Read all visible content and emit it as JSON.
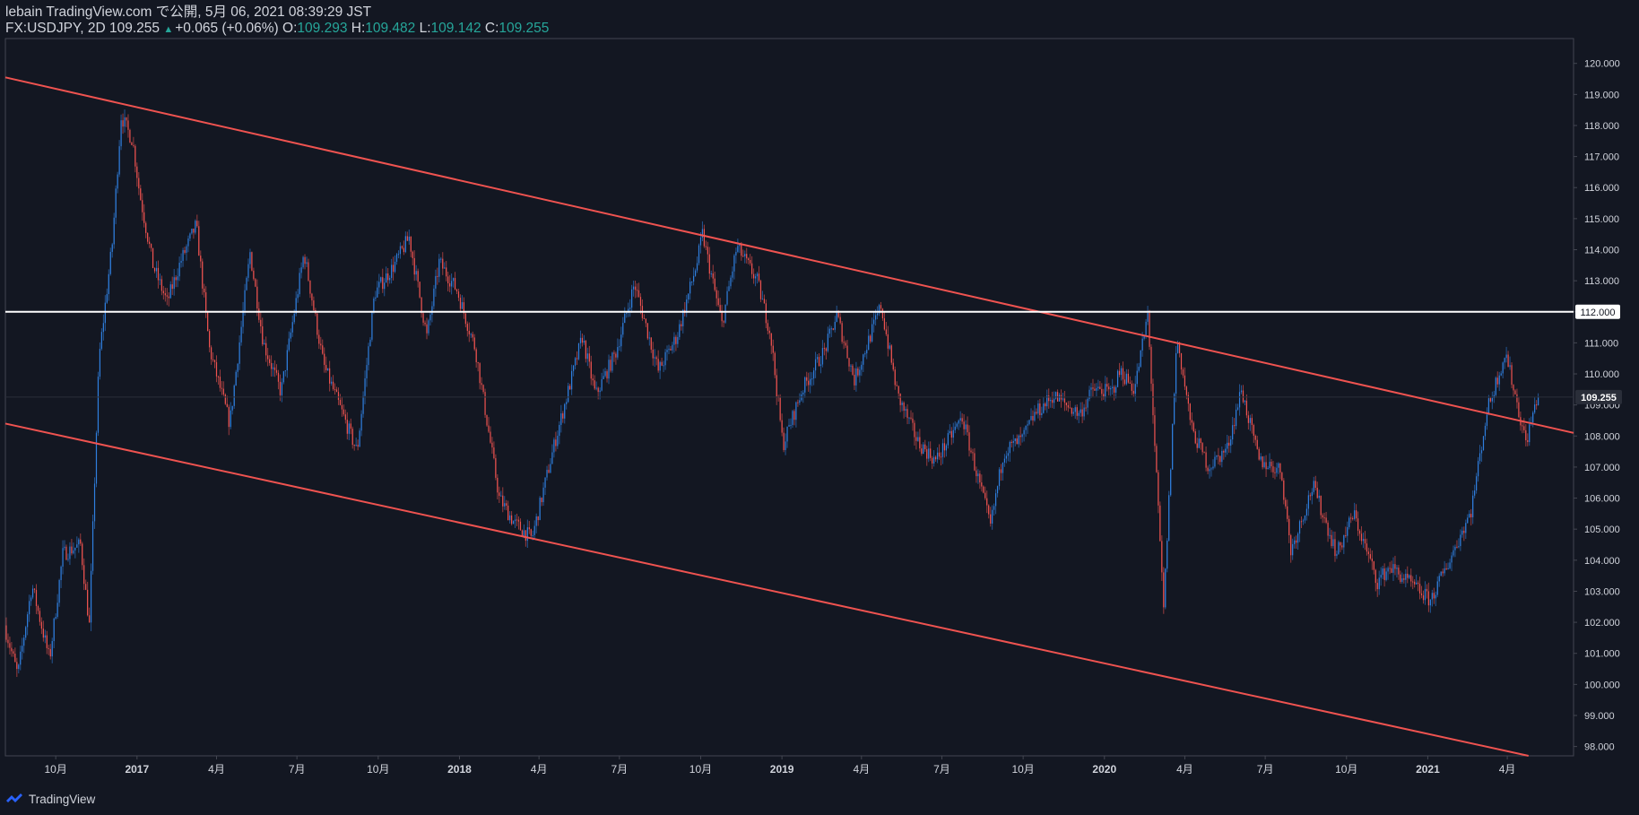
{
  "header": {
    "publish_line": "lebain TradingView.com で公開, 5月 06, 2021 08:39:29 JST",
    "symbol": "FX:USDJPY, 2D",
    "last": "109.255",
    "change": "+0.065 (+0.06%)",
    "o_label": "O:",
    "o_value": "109.293",
    "h_label": "H:",
    "h_value": "109.482",
    "l_label": "L:",
    "l_value": "109.142",
    "c_label": "C:",
    "c_value": "109.255"
  },
  "footer": {
    "brand": "TradingView"
  },
  "colors": {
    "background": "#131722",
    "up": "#2f7fdf",
    "down": "#ef5350",
    "channel": "#ef5350",
    "level": "#ffffff",
    "axis_text": "#d1d4dc"
  },
  "chart_data": {
    "type": "candlestick",
    "symbol": "FX:USDJPY",
    "interval": "2D",
    "ylim": [
      97.7,
      120.8
    ],
    "xlim": [
      "2016-08-05",
      "2021-06-15"
    ],
    "price_ticks": [
      "98.000",
      "99.000",
      "100.000",
      "101.000",
      "102.000",
      "103.000",
      "104.000",
      "105.000",
      "106.000",
      "107.000",
      "108.000",
      "109.000",
      "110.000",
      "111.000",
      "112.000",
      "113.000",
      "114.000",
      "115.000",
      "116.000",
      "117.000",
      "118.000",
      "119.000",
      "120.000"
    ],
    "time_ticks": [
      {
        "label": "10月",
        "date": "2016-10-01"
      },
      {
        "label": "2017",
        "date": "2017-01-01"
      },
      {
        "label": "4月",
        "date": "2017-04-01"
      },
      {
        "label": "7月",
        "date": "2017-07-01"
      },
      {
        "label": "10月",
        "date": "2017-10-01"
      },
      {
        "label": "2018",
        "date": "2018-01-01"
      },
      {
        "label": "4月",
        "date": "2018-04-01"
      },
      {
        "label": "7月",
        "date": "2018-07-01"
      },
      {
        "label": "10月",
        "date": "2018-10-01"
      },
      {
        "label": "2019",
        "date": "2019-01-01"
      },
      {
        "label": "4月",
        "date": "2019-04-01"
      },
      {
        "label": "7月",
        "date": "2019-07-01"
      },
      {
        "label": "10月",
        "date": "2019-10-01"
      },
      {
        "label": "2020",
        "date": "2020-01-01"
      },
      {
        "label": "4月",
        "date": "2020-04-01"
      },
      {
        "label": "7月",
        "date": "2020-07-01"
      },
      {
        "label": "10月",
        "date": "2020-10-01"
      },
      {
        "label": "2021",
        "date": "2021-01-01"
      },
      {
        "label": "4月",
        "date": "2021-04-01"
      }
    ],
    "price_path": [
      [
        "2016-08-05",
        101.9
      ],
      [
        "2016-08-20",
        100.3
      ],
      [
        "2016-09-05",
        103.2
      ],
      [
        "2016-09-25",
        100.8
      ],
      [
        "2016-10-10",
        104.2
      ],
      [
        "2016-10-30",
        104.5
      ],
      [
        "2016-11-09",
        101.9
      ],
      [
        "2016-11-20",
        110.5
      ],
      [
        "2016-12-05",
        114.2
      ],
      [
        "2016-12-15",
        118.3
      ],
      [
        "2016-12-28",
        117.5
      ],
      [
        "2017-01-05",
        115.8
      ],
      [
        "2017-01-20",
        113.5
      ],
      [
        "2017-02-05",
        112.3
      ],
      [
        "2017-02-20",
        113.6
      ],
      [
        "2017-03-10",
        114.8
      ],
      [
        "2017-03-25",
        110.8
      ],
      [
        "2017-04-17",
        108.4
      ],
      [
        "2017-05-10",
        113.9
      ],
      [
        "2017-05-25",
        111.0
      ],
      [
        "2017-06-14",
        109.4
      ],
      [
        "2017-07-10",
        113.9
      ],
      [
        "2017-08-01",
        110.3
      ],
      [
        "2017-08-20",
        108.9
      ],
      [
        "2017-09-08",
        107.5
      ],
      [
        "2017-09-28",
        112.6
      ],
      [
        "2017-10-20",
        113.5
      ],
      [
        "2017-11-06",
        114.4
      ],
      [
        "2017-11-26",
        111.2
      ],
      [
        "2017-12-10",
        113.6
      ],
      [
        "2017-12-30",
        112.7
      ],
      [
        "2018-01-20",
        110.8
      ],
      [
        "2018-02-16",
        106.0
      ],
      [
        "2018-03-05",
        105.2
      ],
      [
        "2018-03-25",
        104.7
      ],
      [
        "2018-04-20",
        107.8
      ],
      [
        "2018-05-21",
        111.2
      ],
      [
        "2018-06-05",
        109.3
      ],
      [
        "2018-06-28",
        110.7
      ],
      [
        "2018-07-19",
        112.9
      ],
      [
        "2018-08-15",
        110.1
      ],
      [
        "2018-09-05",
        111.2
      ],
      [
        "2018-09-28",
        113.6
      ],
      [
        "2018-10-04",
        114.5
      ],
      [
        "2018-10-26",
        111.6
      ],
      [
        "2018-11-12",
        114.1
      ],
      [
        "2018-12-05",
        113.0
      ],
      [
        "2018-12-20",
        111.3
      ],
      [
        "2019-01-03",
        107.7
      ],
      [
        "2019-01-25",
        109.5
      ],
      [
        "2019-02-20",
        110.8
      ],
      [
        "2019-03-05",
        111.9
      ],
      [
        "2019-03-25",
        109.8
      ],
      [
        "2019-04-24",
        112.2
      ],
      [
        "2019-05-13",
        109.3
      ],
      [
        "2019-06-05",
        107.8
      ],
      [
        "2019-06-25",
        107.2
      ],
      [
        "2019-07-25",
        108.6
      ],
      [
        "2019-08-26",
        105.1
      ],
      [
        "2019-09-10",
        107.5
      ],
      [
        "2019-10-01",
        107.9
      ],
      [
        "2019-10-15",
        108.7
      ],
      [
        "2019-11-05",
        109.3
      ],
      [
        "2019-12-05",
        108.7
      ],
      [
        "2019-12-20",
        109.5
      ],
      [
        "2020-01-10",
        109.4
      ],
      [
        "2020-01-20",
        110.1
      ],
      [
        "2020-02-05",
        109.5
      ],
      [
        "2020-02-20",
        111.9
      ],
      [
        "2020-03-09",
        102.4
      ],
      [
        "2020-03-24",
        111.2
      ],
      [
        "2020-04-10",
        108.2
      ],
      [
        "2020-04-29",
        107.0
      ],
      [
        "2020-05-20",
        107.6
      ],
      [
        "2020-06-05",
        109.5
      ],
      [
        "2020-06-25",
        107.2
      ],
      [
        "2020-07-20",
        106.9
      ],
      [
        "2020-07-31",
        104.3
      ],
      [
        "2020-08-25",
        106.4
      ],
      [
        "2020-09-21",
        104.2
      ],
      [
        "2020-10-10",
        105.5
      ],
      [
        "2020-11-06",
        103.3
      ],
      [
        "2020-11-20",
        103.8
      ],
      [
        "2020-12-15",
        103.2
      ],
      [
        "2021-01-05",
        102.7
      ],
      [
        "2021-01-25",
        103.9
      ],
      [
        "2021-02-20",
        105.6
      ],
      [
        "2021-03-10",
        108.8
      ],
      [
        "2021-03-31",
        110.7
      ],
      [
        "2021-04-15",
        108.8
      ],
      [
        "2021-04-23",
        107.8
      ],
      [
        "2021-05-06",
        109.255
      ]
    ],
    "trendlines": [
      {
        "name": "channel-upper",
        "color": "#ef5350",
        "from": [
          "2016-08-05",
          119.55
        ],
        "to": [
          "2021-06-15",
          108.1
        ]
      },
      {
        "name": "channel-lower",
        "color": "#ef5350",
        "from": [
          "2016-08-05",
          108.4
        ],
        "to": [
          "2021-04-25",
          97.7
        ]
      }
    ],
    "horizontal_levels": [
      {
        "name": "level-112",
        "value": 112.0,
        "label": "112.000",
        "color": "#ffffff"
      }
    ],
    "last_price": {
      "value": 109.255,
      "label": "109.255"
    }
  }
}
